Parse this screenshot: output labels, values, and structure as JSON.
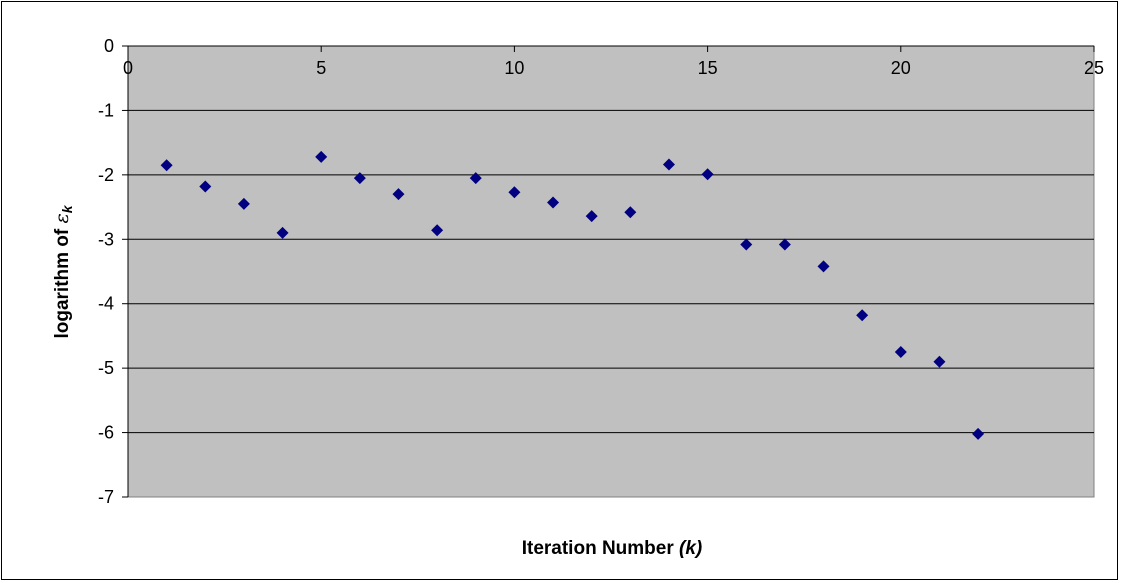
{
  "chart_data": {
    "type": "scatter",
    "xlabel_parts": [
      "Iteration Number ",
      "(k)"
    ],
    "ylabel_parts": [
      "logarithm of ",
      "ε",
      "k"
    ],
    "xlim": [
      0,
      25
    ],
    "ylim": [
      -7,
      0
    ],
    "x_ticks": [
      "0",
      "5",
      "10",
      "15",
      "20",
      "25"
    ],
    "y_ticks": [
      "0",
      "-1",
      "-2",
      "-3",
      "-4",
      "-5",
      "-6",
      "-7"
    ],
    "grid": "horizontal",
    "plot_background": "#c0c0c0",
    "marker_color": "#000080",
    "marker": "diamond",
    "x": [
      1,
      2,
      3,
      4,
      5,
      6,
      7,
      8,
      9,
      10,
      11,
      12,
      13,
      14,
      15,
      16,
      17,
      18,
      19,
      20,
      21,
      22
    ],
    "y": [
      -1.85,
      -2.18,
      -2.45,
      -2.9,
      -1.72,
      -2.05,
      -2.3,
      -2.86,
      -2.05,
      -2.27,
      -2.43,
      -2.64,
      -2.58,
      -1.84,
      -1.99,
      -3.08,
      -3.08,
      -3.42,
      -4.18,
      -4.75,
      -4.9,
      -6.02
    ]
  }
}
